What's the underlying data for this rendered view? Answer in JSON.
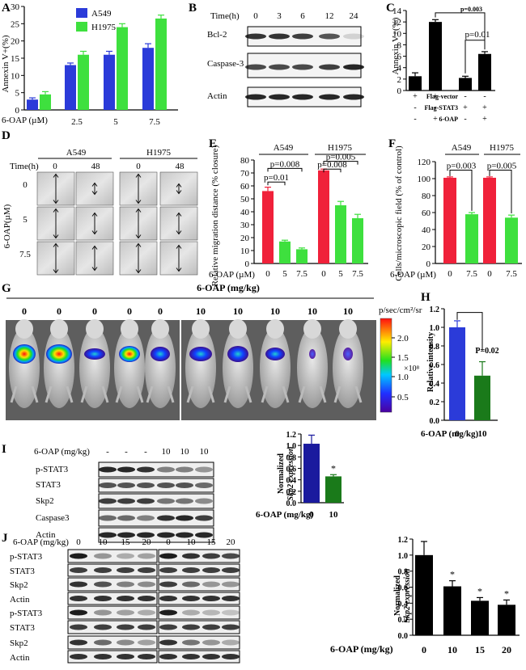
{
  "panel_letters": [
    "A",
    "B",
    "C",
    "D",
    "E",
    "F",
    "G",
    "H",
    "I",
    "J"
  ],
  "colors": {
    "blue": "#2b3bd9",
    "green": "#3ee03e",
    "red": "#f0213a",
    "black": "#000000",
    "darkgreen": "#1a7a1a"
  },
  "panelA": {
    "ylabel": "Annexin V+(%)",
    "xlabel_prefix": "6-OAP (µM)",
    "legend": [
      "A549",
      "H1975"
    ]
  },
  "panelB": {
    "time_label": "Time(h)",
    "times": [
      "0",
      "3",
      "6",
      "12",
      "24"
    ],
    "blots": [
      "Bcl-2",
      "Caspase-3",
      "Actin"
    ]
  },
  "panelC": {
    "ylabel": "Annexin V+(%)",
    "row_labels": [
      "Flag-vector",
      "Flag-STAT3",
      "6-OAP"
    ],
    "row_signs": [
      [
        "+",
        "+",
        "-",
        "-"
      ],
      [
        "-",
        "-",
        "+",
        "+"
      ],
      [
        "-",
        "+",
        "-",
        "+"
      ]
    ],
    "pvalues": [
      "p=0.003",
      "p=0.01"
    ]
  },
  "panelD": {
    "cells": [
      "A549",
      "H1975"
    ],
    "time_label": "Time(h)",
    "times": [
      "0",
      "48",
      "0",
      "48"
    ],
    "ylabel": "6-OAP(µM)",
    "rows": [
      "0",
      "5",
      "7.5"
    ]
  },
  "panelE": {
    "ylabel": "Relative migration distance (% closure)",
    "xlabel_prefix": "6-OAP (µM)",
    "cells": [
      "A549",
      "H1975"
    ],
    "pvalues": [
      "p=0.008",
      "p=0.01",
      "p=0.005",
      "p=0.008"
    ]
  },
  "panelF": {
    "ylabel": "Cells/microscopic field (% of control)",
    "xlabel_prefix": "6-OAP (µM)",
    "cells": [
      "A549",
      "H1975"
    ],
    "pvalues": [
      "p=0.003",
      "p=0.005"
    ]
  },
  "panelG": {
    "title": "6-OAP (mg/kg)",
    "doses": [
      "0",
      "0",
      "0",
      "0",
      "0",
      "10",
      "10",
      "10",
      "10",
      "10"
    ],
    "scale_unit": "p/sec/cm²/sr",
    "scale_ticks": [
      "2.0",
      "1.5",
      "1.0",
      "0.5"
    ],
    "scale_mult": "×10⁸"
  },
  "panelH": {
    "ylabel": "Relative intensity",
    "xlabel_prefix": "6-OAP (mg/kg)",
    "pvalue": "P=0.02"
  },
  "panelI": {
    "dose_label": "6-OAP (mg/kg)",
    "doses": [
      "-",
      "-",
      "-",
      "10",
      "10",
      "10"
    ],
    "blots": [
      "p-STAT3",
      "STAT3",
      "Skp2",
      "Caspase3",
      "Actin"
    ],
    "ylabel_line1": "Normalized",
    "ylabel_line2": "Skp2 expression",
    "xlabel_prefix": "6-OAP (mg/kg)",
    "star": "*"
  },
  "panelJ": {
    "dose_label": "6-OAP (mg/kg)",
    "doses": [
      "0",
      "10",
      "15",
      "20",
      "0",
      "10",
      "15",
      "20"
    ],
    "blots": [
      "p-STAT3",
      "STAT3",
      "Skp2",
      "Actin",
      "p-STAT3",
      "STAT3",
      "Skp2",
      "Actin"
    ],
    "ylabel_line1": "Normalized",
    "ylabel_line2": "Skp2 expression",
    "xlabel_prefix": "6-OAP (mg/kg)",
    "stars": [
      "*",
      "*",
      "*"
    ]
  },
  "chart_data": [
    {
      "panel": "A",
      "type": "bar",
      "categories": [
        "-",
        "2.5",
        "5",
        "7.5"
      ],
      "series": [
        {
          "name": "A549",
          "values": [
            3,
            13,
            16,
            18
          ],
          "errors": [
            0.5,
            0.6,
            1.0,
            1.2
          ]
        },
        {
          "name": "H1975",
          "values": [
            4.5,
            16,
            24,
            26.5
          ],
          "errors": [
            0.8,
            1.0,
            1.0,
            1.0
          ]
        }
      ],
      "ylim": [
        0,
        30
      ],
      "yticks": [
        0,
        5,
        10,
        15,
        20,
        25,
        30
      ]
    },
    {
      "panel": "C",
      "type": "bar",
      "categories": [
        "1",
        "2",
        "3",
        "4"
      ],
      "values": [
        2.5,
        12,
        2.2,
        6.4
      ],
      "errors": [
        0.6,
        0.4,
        0.3,
        0.4
      ],
      "ylim": [
        0,
        14
      ],
      "yticks": [
        0,
        2,
        4,
        6,
        8,
        10,
        12,
        14
      ]
    },
    {
      "panel": "E",
      "type": "bar",
      "categories": [
        "0",
        "5",
        "7.5",
        "0",
        "5",
        "7.5"
      ],
      "values": [
        56,
        17,
        11,
        72,
        45,
        35
      ],
      "errors": [
        3,
        1,
        1,
        1,
        3,
        3
      ],
      "ylim": [
        0,
        80
      ],
      "yticks": [
        0,
        10,
        20,
        30,
        40,
        50,
        60,
        70,
        80
      ]
    },
    {
      "panel": "F",
      "type": "bar",
      "categories": [
        "0",
        "7.5",
        "0",
        "7.5"
      ],
      "values": [
        101,
        58,
        101,
        54
      ],
      "errors": [
        1,
        2,
        1,
        3
      ],
      "ylim": [
        0,
        120
      ],
      "yticks": [
        0,
        20,
        40,
        60,
        80,
        100,
        120
      ]
    },
    {
      "panel": "H",
      "type": "bar",
      "categories": [
        "0",
        "10"
      ],
      "values": [
        1.0,
        0.48
      ],
      "errors": [
        0.07,
        0.15
      ],
      "ylim": [
        0,
        1.2
      ],
      "yticks": [
        0,
        0.2,
        0.4,
        0.6,
        0.8,
        1.0,
        1.2
      ]
    },
    {
      "panel": "I",
      "type": "bar",
      "categories": [
        "0",
        "10"
      ],
      "values": [
        1.03,
        0.46
      ],
      "errors": [
        0.15,
        0.03
      ],
      "ylim": [
        0,
        1.2
      ],
      "yticks": [
        0,
        0.2,
        0.4,
        0.6,
        0.8,
        1.0,
        1.2
      ]
    },
    {
      "panel": "J",
      "type": "bar",
      "categories": [
        "0",
        "10",
        "15",
        "20"
      ],
      "values": [
        1.0,
        0.61,
        0.43,
        0.38
      ],
      "errors": [
        0.17,
        0.07,
        0.04,
        0.06
      ],
      "ylim": [
        0,
        1.2
      ],
      "yticks": [
        0,
        0.2,
        0.4,
        0.6,
        0.8,
        1.0,
        1.2
      ]
    }
  ]
}
